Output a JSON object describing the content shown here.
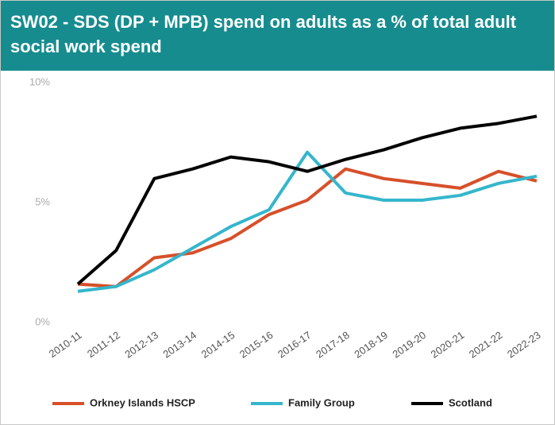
{
  "chart_data": {
    "type": "line",
    "title": "SW02 - SDS (DP + MPB) spend on adults as a % of total adult social work spend",
    "categories": [
      "2010-11",
      "2011-12",
      "2012-13",
      "2013-14",
      "2014-15",
      "2015-16",
      "2016-17",
      "2017-18",
      "2018-19",
      "2019-20",
      "2020-21",
      "2021-22",
      "2022-23"
    ],
    "series": [
      {
        "name": "Orkney Islands HSCP",
        "color": "#d6502a",
        "values": [
          1.6,
          1.5,
          2.7,
          2.9,
          3.5,
          4.5,
          5.1,
          6.4,
          6.0,
          5.8,
          5.6,
          6.3,
          5.9
        ]
      },
      {
        "name": "Family Group",
        "color": "#35b6cc",
        "values": [
          1.3,
          1.5,
          2.2,
          3.1,
          4.0,
          4.7,
          7.1,
          5.4,
          5.1,
          5.1,
          5.3,
          5.8,
          6.1
        ]
      },
      {
        "name": "Scotland",
        "color": "#000000",
        "values": [
          1.6,
          3.0,
          6.0,
          6.4,
          6.9,
          6.7,
          6.3,
          6.8,
          7.2,
          7.7,
          8.1,
          8.3,
          8.6
        ]
      }
    ],
    "ylim": [
      0,
      10
    ],
    "yticks": [
      {
        "value": 0,
        "label": "0%"
      },
      {
        "value": 5,
        "label": "5%"
      },
      {
        "value": 10,
        "label": "10%"
      }
    ],
    "grid": false,
    "legend": "bottom"
  }
}
